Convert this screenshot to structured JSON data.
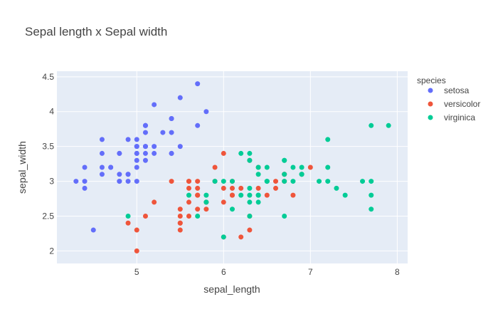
{
  "chart_data": {
    "type": "scatter",
    "title": "Sepal length x Sepal width",
    "xlabel": "sepal_length",
    "ylabel": "sepal_width",
    "xlim": [
      4.08,
      8.12
    ],
    "ylim": [
      1.82,
      4.58
    ],
    "xticks": [
      5,
      6,
      7,
      8
    ],
    "yticks": [
      2,
      2.5,
      3,
      3.5,
      4,
      4.5
    ],
    "ytick_labels": [
      "2",
      "2.5",
      "3",
      "3.5",
      "4",
      "4.5"
    ],
    "grid": true,
    "legend_title": "species",
    "legend_position": "right",
    "series": [
      {
        "name": "setosa",
        "color": "#636efa",
        "points": [
          [
            5.1,
            3.5
          ],
          [
            4.9,
            3.0
          ],
          [
            4.7,
            3.2
          ],
          [
            4.6,
            3.1
          ],
          [
            5.0,
            3.6
          ],
          [
            5.4,
            3.9
          ],
          [
            4.6,
            3.4
          ],
          [
            5.0,
            3.4
          ],
          [
            4.4,
            2.9
          ],
          [
            4.9,
            3.1
          ],
          [
            5.4,
            3.7
          ],
          [
            4.8,
            3.4
          ],
          [
            4.8,
            3.0
          ],
          [
            4.3,
            3.0
          ],
          [
            5.8,
            4.0
          ],
          [
            5.7,
            4.4
          ],
          [
            5.4,
            3.9
          ],
          [
            5.1,
            3.5
          ],
          [
            5.7,
            3.8
          ],
          [
            5.1,
            3.8
          ],
          [
            5.4,
            3.4
          ],
          [
            5.1,
            3.7
          ],
          [
            4.6,
            3.6
          ],
          [
            5.1,
            3.3
          ],
          [
            4.8,
            3.4
          ],
          [
            5.0,
            3.0
          ],
          [
            5.0,
            3.4
          ],
          [
            5.2,
            3.5
          ],
          [
            5.2,
            3.4
          ],
          [
            4.7,
            3.2
          ],
          [
            4.8,
            3.1
          ],
          [
            5.4,
            3.4
          ],
          [
            5.2,
            4.1
          ],
          [
            5.5,
            4.2
          ],
          [
            4.9,
            3.1
          ],
          [
            5.0,
            3.2
          ],
          [
            5.5,
            3.5
          ],
          [
            4.9,
            3.6
          ],
          [
            4.4,
            3.0
          ],
          [
            5.1,
            3.4
          ],
          [
            5.0,
            3.5
          ],
          [
            4.5,
            2.3
          ],
          [
            4.4,
            3.2
          ],
          [
            5.0,
            3.5
          ],
          [
            5.1,
            3.8
          ],
          [
            4.8,
            3.0
          ],
          [
            5.1,
            3.8
          ],
          [
            4.6,
            3.2
          ],
          [
            5.3,
            3.7
          ],
          [
            5.0,
            3.3
          ]
        ]
      },
      {
        "name": "versicolor",
        "color": "#ef553b",
        "points": [
          [
            7.0,
            3.2
          ],
          [
            6.4,
            3.2
          ],
          [
            6.9,
            3.1
          ],
          [
            5.5,
            2.3
          ],
          [
            6.5,
            2.8
          ],
          [
            5.7,
            2.8
          ],
          [
            6.3,
            3.3
          ],
          [
            4.9,
            2.4
          ],
          [
            6.6,
            2.9
          ],
          [
            5.2,
            2.7
          ],
          [
            5.0,
            2.0
          ],
          [
            5.9,
            3.0
          ],
          [
            6.0,
            2.2
          ],
          [
            6.1,
            2.9
          ],
          [
            5.6,
            2.9
          ],
          [
            6.7,
            3.1
          ],
          [
            5.6,
            3.0
          ],
          [
            5.8,
            2.7
          ],
          [
            6.2,
            2.2
          ],
          [
            5.6,
            2.5
          ],
          [
            5.9,
            3.2
          ],
          [
            6.1,
            2.8
          ],
          [
            6.3,
            2.5
          ],
          [
            6.1,
            2.8
          ],
          [
            6.4,
            2.9
          ],
          [
            6.6,
            3.0
          ],
          [
            6.8,
            2.8
          ],
          [
            6.7,
            3.0
          ],
          [
            6.0,
            2.9
          ],
          [
            5.7,
            2.6
          ],
          [
            5.5,
            2.4
          ],
          [
            5.5,
            2.4
          ],
          [
            5.8,
            2.7
          ],
          [
            6.0,
            2.7
          ],
          [
            5.4,
            3.0
          ],
          [
            6.0,
            3.4
          ],
          [
            6.7,
            3.1
          ],
          [
            6.3,
            2.3
          ],
          [
            5.6,
            3.0
          ],
          [
            5.5,
            2.5
          ],
          [
            5.5,
            2.6
          ],
          [
            6.1,
            3.0
          ],
          [
            5.8,
            2.6
          ],
          [
            5.0,
            2.3
          ],
          [
            5.6,
            2.7
          ],
          [
            5.7,
            3.0
          ],
          [
            5.7,
            2.9
          ],
          [
            6.2,
            2.9
          ],
          [
            5.1,
            2.5
          ],
          [
            5.7,
            2.8
          ]
        ]
      },
      {
        "name": "virginica",
        "color": "#00cc96",
        "points": [
          [
            6.3,
            3.3
          ],
          [
            5.8,
            2.7
          ],
          [
            7.1,
            3.0
          ],
          [
            6.3,
            2.9
          ],
          [
            6.5,
            3.0
          ],
          [
            7.6,
            3.0
          ],
          [
            4.9,
            2.5
          ],
          [
            7.3,
            2.9
          ],
          [
            6.7,
            2.5
          ],
          [
            7.2,
            3.6
          ],
          [
            6.5,
            3.2
          ],
          [
            6.4,
            2.7
          ],
          [
            6.8,
            3.0
          ],
          [
            5.7,
            2.5
          ],
          [
            5.8,
            2.8
          ],
          [
            6.4,
            3.2
          ],
          [
            6.5,
            3.0
          ],
          [
            7.7,
            3.8
          ],
          [
            7.7,
            2.6
          ],
          [
            6.0,
            2.2
          ],
          [
            6.9,
            3.2
          ],
          [
            5.6,
            2.8
          ],
          [
            7.7,
            2.8
          ],
          [
            6.3,
            2.7
          ],
          [
            6.7,
            3.3
          ],
          [
            7.2,
            3.2
          ],
          [
            6.2,
            2.8
          ],
          [
            6.1,
            3.0
          ],
          [
            6.4,
            2.8
          ],
          [
            7.2,
            3.0
          ],
          [
            7.4,
            2.8
          ],
          [
            7.9,
            3.8
          ],
          [
            6.4,
            2.8
          ],
          [
            6.3,
            2.8
          ],
          [
            6.1,
            2.6
          ],
          [
            7.7,
            3.0
          ],
          [
            6.3,
            3.4
          ],
          [
            6.4,
            3.1
          ],
          [
            6.0,
            3.0
          ],
          [
            6.9,
            3.1
          ],
          [
            6.7,
            3.1
          ],
          [
            6.9,
            3.1
          ],
          [
            5.8,
            2.7
          ],
          [
            6.8,
            3.2
          ],
          [
            6.7,
            3.3
          ],
          [
            6.7,
            3.0
          ],
          [
            6.3,
            2.5
          ],
          [
            6.5,
            3.0
          ],
          [
            6.2,
            3.4
          ],
          [
            5.9,
            3.0
          ]
        ]
      }
    ]
  }
}
